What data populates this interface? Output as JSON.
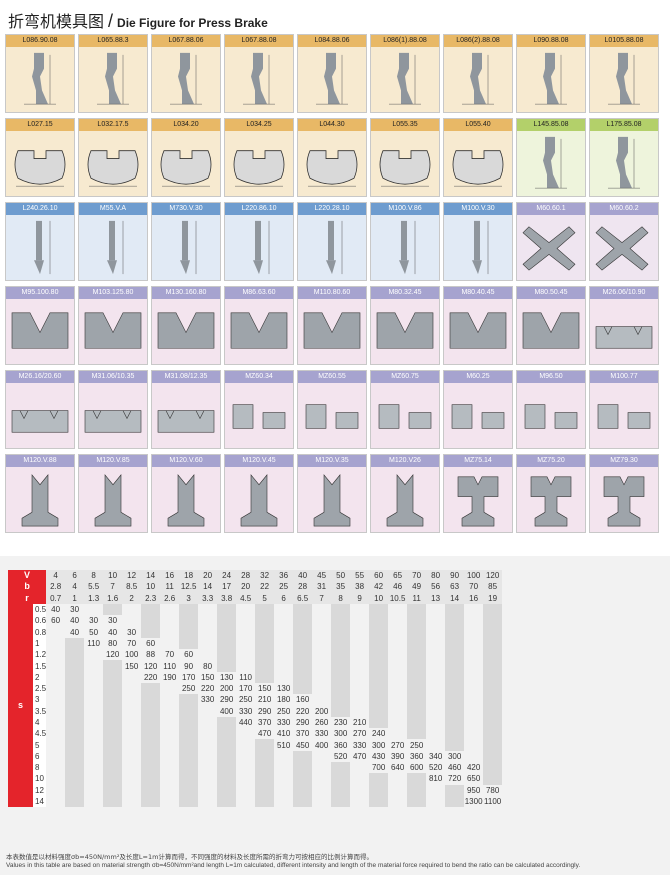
{
  "title": {
    "zh": "折弯机模具图",
    "slash": "/",
    "en": "Die Figure for Press Brake"
  },
  "rows": [
    [
      {
        "label": "L086.90.08",
        "theme": "tan",
        "kind": "punch"
      },
      {
        "label": "L065.88.3",
        "theme": "tan",
        "kind": "punch"
      },
      {
        "label": "L067.88.06",
        "theme": "tan",
        "kind": "punch"
      },
      {
        "label": "L067.88.08",
        "theme": "tan",
        "kind": "punch"
      },
      {
        "label": "L084.88.06",
        "theme": "tan",
        "kind": "punch"
      },
      {
        "label": "L086(1).88.08",
        "theme": "tan",
        "kind": "punch"
      },
      {
        "label": "L086(2).88.08",
        "theme": "tan",
        "kind": "punch"
      },
      {
        "label": "L090.88.08",
        "theme": "tan",
        "kind": "punch"
      },
      {
        "label": "L0105.88.08",
        "theme": "tan",
        "kind": "punch"
      }
    ],
    [
      {
        "label": "L027.15",
        "theme": "tan",
        "kind": "clamp"
      },
      {
        "label": "L032.17.5",
        "theme": "tan",
        "kind": "clamp"
      },
      {
        "label": "L034.20",
        "theme": "tan",
        "kind": "clamp"
      },
      {
        "label": "L034.25",
        "theme": "tan",
        "kind": "clamp"
      },
      {
        "label": "L044.30",
        "theme": "tan",
        "kind": "clamp"
      },
      {
        "label": "L055.35",
        "theme": "tan",
        "kind": "clamp"
      },
      {
        "label": "L055.40",
        "theme": "tan",
        "kind": "clamp"
      },
      {
        "label": "L145.85.08",
        "theme": "green",
        "kind": "punch"
      },
      {
        "label": "L175.85.08",
        "theme": "green",
        "kind": "punch"
      }
    ],
    [
      {
        "label": "L240.26.10",
        "theme": "blue",
        "kind": "tall"
      },
      {
        "label": "M55.V.A",
        "theme": "blue",
        "kind": "tall"
      },
      {
        "label": "M730.V.30",
        "theme": "blue",
        "kind": "tall"
      },
      {
        "label": "L220.86.10",
        "theme": "blue",
        "kind": "tall"
      },
      {
        "label": "L220.28.10",
        "theme": "blue",
        "kind": "tall"
      },
      {
        "label": "M100.V.86",
        "theme": "blue",
        "kind": "tall"
      },
      {
        "label": "M100.V.30",
        "theme": "blue",
        "kind": "tall"
      },
      {
        "label": "M60.60.1",
        "theme": "purple",
        "kind": "cross"
      },
      {
        "label": "M60.60.2",
        "theme": "purple",
        "kind": "cross"
      }
    ],
    [
      {
        "label": "M95.100.80",
        "theme": "pink",
        "kind": "vdie"
      },
      {
        "label": "M103.125.80",
        "theme": "pink",
        "kind": "vdie"
      },
      {
        "label": "M130.160.80",
        "theme": "pink",
        "kind": "vdie"
      },
      {
        "label": "M86.63.60",
        "theme": "pink",
        "kind": "vdie"
      },
      {
        "label": "M110.80.60",
        "theme": "pink",
        "kind": "vdie"
      },
      {
        "label": "M80.32.45",
        "theme": "pink",
        "kind": "vdie"
      },
      {
        "label": "M80.40.45",
        "theme": "pink",
        "kind": "vdie"
      },
      {
        "label": "M80.50.45",
        "theme": "pink",
        "kind": "vdie"
      },
      {
        "label": "M26.06/10.90",
        "theme": "pink",
        "kind": "flat"
      }
    ],
    [
      {
        "label": "M26.16/20.60",
        "theme": "pink",
        "kind": "flat"
      },
      {
        "label": "M31.06/10.35",
        "theme": "pink",
        "kind": "flat"
      },
      {
        "label": "M31.08/12.35",
        "theme": "pink",
        "kind": "flat"
      },
      {
        "label": "MZ60.34",
        "theme": "pink",
        "kind": "block"
      },
      {
        "label": "MZ60.55",
        "theme": "pink",
        "kind": "block"
      },
      {
        "label": "MZ60.75",
        "theme": "pink",
        "kind": "block"
      },
      {
        "label": "M60.25",
        "theme": "pink",
        "kind": "block"
      },
      {
        "label": "M96.50",
        "theme": "pink",
        "kind": "block"
      },
      {
        "label": "M100.77",
        "theme": "pink",
        "kind": "block"
      }
    ],
    [
      {
        "label": "M120.V.88",
        "theme": "pink",
        "kind": "stem"
      },
      {
        "label": "M120.V.85",
        "theme": "pink",
        "kind": "stem"
      },
      {
        "label": "M120.V.60",
        "theme": "pink",
        "kind": "stem"
      },
      {
        "label": "M120.V.45",
        "theme": "pink",
        "kind": "stem"
      },
      {
        "label": "M120.V.35",
        "theme": "pink",
        "kind": "stem"
      },
      {
        "label": "M120.V26",
        "theme": "pink",
        "kind": "stem"
      },
      {
        "label": "MZ75.14",
        "theme": "pink",
        "kind": "stem2"
      },
      {
        "label": "MZ75.20",
        "theme": "pink",
        "kind": "stem2"
      },
      {
        "label": "MZ79.30",
        "theme": "pink",
        "kind": "stem2"
      }
    ]
  ],
  "table": {
    "v_label": "V",
    "b_label": "b",
    "r_label": "r",
    "s_label": "s",
    "v": [
      "4",
      "6",
      "8",
      "10",
      "12",
      "14",
      "16",
      "18",
      "20",
      "24",
      "28",
      "32",
      "36",
      "40",
      "45",
      "50",
      "55",
      "60",
      "65",
      "70",
      "80",
      "90",
      "100",
      "120"
    ],
    "b": [
      "2.8",
      "4",
      "5.5",
      "7",
      "8.5",
      "10",
      "11",
      "12.5",
      "14",
      "17",
      "20",
      "22",
      "25",
      "28",
      "31",
      "35",
      "38",
      "42",
      "46",
      "49",
      "56",
      "63",
      "70",
      "85"
    ],
    "r": [
      "0.7",
      "1",
      "1.3",
      "1.6",
      "2",
      "2.3",
      "2.6",
      "3",
      "3.3",
      "3.8",
      "4.5",
      "5",
      "6",
      "6.5",
      "7",
      "8",
      "9",
      "10",
      "10.5",
      "11",
      "13",
      "14",
      "16",
      "19"
    ],
    "s_rows": [
      {
        "s": "0.5",
        "start": 0,
        "vals": [
          "40",
          "30"
        ]
      },
      {
        "s": "0.6",
        "start": 0,
        "vals": [
          "60",
          "40",
          "30",
          "30"
        ]
      },
      {
        "s": "0.8",
        "start": 1,
        "vals": [
          "40",
          "50",
          "40",
          "30"
        ]
      },
      {
        "s": "1",
        "start": 2,
        "vals": [
          "110",
          "80",
          "70",
          "60"
        ]
      },
      {
        "s": "1.2",
        "start": 3,
        "vals": [
          "120",
          "100",
          "88",
          "70",
          "60"
        ]
      },
      {
        "s": "1.5",
        "start": 4,
        "vals": [
          "150",
          "120",
          "110",
          "90",
          "80"
        ]
      },
      {
        "s": "2",
        "start": 5,
        "vals": [
          "220",
          "190",
          "170",
          "150",
          "130",
          "110"
        ]
      },
      {
        "s": "2.5",
        "start": 7,
        "vals": [
          "250",
          "220",
          "200",
          "170",
          "150",
          "130"
        ]
      },
      {
        "s": "3",
        "start": 8,
        "vals": [
          "330",
          "290",
          "250",
          "210",
          "180",
          "160"
        ]
      },
      {
        "s": "3.5",
        "start": 9,
        "vals": [
          "400",
          "330",
          "290",
          "250",
          "220",
          "200"
        ]
      },
      {
        "s": "4",
        "start": 10,
        "vals": [
          "440",
          "370",
          "330",
          "290",
          "260",
          "230",
          "210"
        ]
      },
      {
        "s": "4.5",
        "start": 11,
        "vals": [
          "470",
          "410",
          "370",
          "330",
          "300",
          "270",
          "240"
        ]
      },
      {
        "s": "5",
        "start": 12,
        "vals": [
          "510",
          "450",
          "400",
          "360",
          "330",
          "300",
          "270",
          "250"
        ]
      },
      {
        "s": "6",
        "start": 15,
        "vals": [
          "520",
          "470",
          "430",
          "390",
          "360",
          "340",
          "300"
        ]
      },
      {
        "s": "8",
        "start": 17,
        "vals": [
          "700",
          "640",
          "600",
          "520",
          "460",
          "420"
        ]
      },
      {
        "s": "10",
        "start": 20,
        "vals": [
          "810",
          "720",
          "650"
        ]
      },
      {
        "s": "12",
        "start": 22,
        "vals": [
          "950",
          "780"
        ]
      },
      {
        "s": "14",
        "start": 22,
        "vals": [
          "1300",
          "1100"
        ]
      }
    ],
    "note_zh": "本表数值是以材料强度σb=450N/mm²及长度L=1m计算而得，不同强度的材料及长度所需的折弯力可按相应的比例计算而得。",
    "note_en": "Values in this table are based on material strength σb=450N/mm²and length L=1m calculated, different intensity and length of the material force required to bend the ratio can be calculated accordingly."
  }
}
